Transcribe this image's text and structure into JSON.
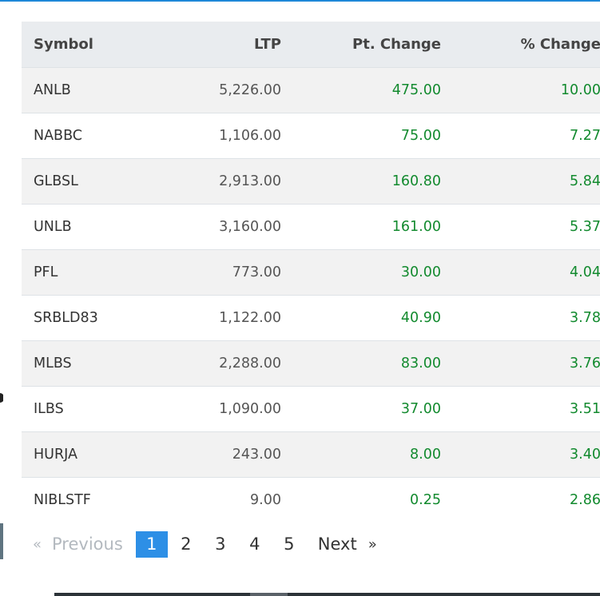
{
  "table": {
    "columns": [
      "Symbol",
      "LTP",
      "Pt. Change",
      "% Change"
    ],
    "rows": [
      {
        "symbol": "ANLB",
        "ltp": "5,226.00",
        "pt_change": "475.00",
        "pct_change": "10.00"
      },
      {
        "symbol": "NABBC",
        "ltp": "1,106.00",
        "pt_change": "75.00",
        "pct_change": "7.27"
      },
      {
        "symbol": "GLBSL",
        "ltp": "2,913.00",
        "pt_change": "160.80",
        "pct_change": "5.84"
      },
      {
        "symbol": "UNLB",
        "ltp": "3,160.00",
        "pt_change": "161.00",
        "pct_change": "5.37"
      },
      {
        "symbol": "PFL",
        "ltp": "773.00",
        "pt_change": "30.00",
        "pct_change": "4.04"
      },
      {
        "symbol": "SRBLD83",
        "ltp": "1,122.00",
        "pt_change": "40.90",
        "pct_change": "3.78"
      },
      {
        "symbol": "MLBS",
        "ltp": "2,288.00",
        "pt_change": "83.00",
        "pct_change": "3.76"
      },
      {
        "symbol": "ILBS",
        "ltp": "1,090.00",
        "pt_change": "37.00",
        "pct_change": "3.51"
      },
      {
        "symbol": "HURJA",
        "ltp": "243.00",
        "pt_change": "8.00",
        "pct_change": "3.40"
      },
      {
        "symbol": "NIBLSTF",
        "ltp": "9.00",
        "pt_change": "0.25",
        "pct_change": "2.86"
      }
    ]
  },
  "pagination": {
    "prev_arrow": "«",
    "prev_label": "Previous",
    "pages": [
      "1",
      "2",
      "3",
      "4",
      "5"
    ],
    "active_page": "1",
    "next_label": "Next",
    "next_arrow": "»"
  },
  "colors": {
    "gain": "#128a2e",
    "accent": "#2d8fe6",
    "header_bg": "#e9ecef",
    "stripe_bg": "#f2f2f2"
  }
}
